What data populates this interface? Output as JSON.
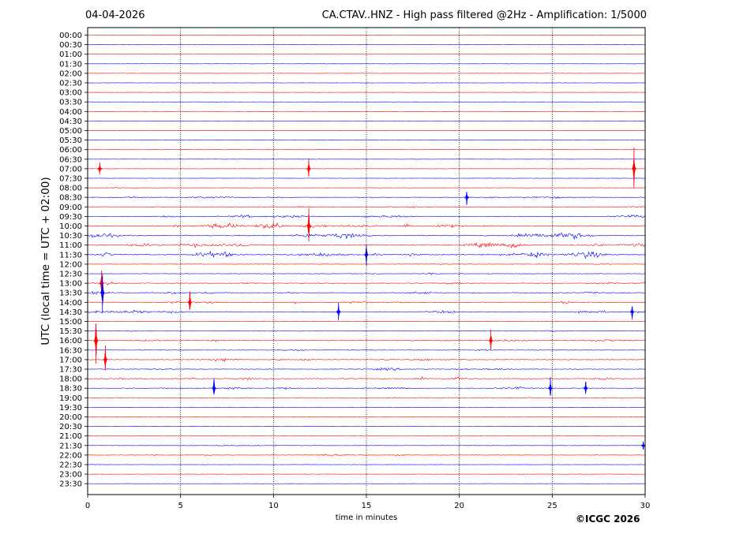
{
  "header": {
    "date": "04-04-2026",
    "title": "CA.CTAV..HNZ - High pass filtered @2Hz - Amplification: 1/5000"
  },
  "footer": {
    "copyright": "©ICGC 2026"
  },
  "chart_data": {
    "type": "line",
    "title": "CA.CTAV..HNZ - High pass filtered @2Hz - Amplification: 1/5000",
    "xlabel": "time in minutes",
    "ylabel": "UTC (local time = UTC + 02:00)",
    "xlim": [
      0,
      30
    ],
    "xticks": [
      0,
      5,
      10,
      15,
      20,
      25,
      30
    ],
    "vertical_gridlines_at": [
      5,
      10,
      15,
      20,
      25
    ],
    "row_labels": [
      "00:00",
      "00:30",
      "01:00",
      "01:30",
      "02:00",
      "02:30",
      "03:00",
      "03:30",
      "04:00",
      "04:30",
      "05:00",
      "05:30",
      "06:00",
      "06:30",
      "07:00",
      "07:30",
      "08:00",
      "08:30",
      "09:00",
      "09:30",
      "10:00",
      "10:30",
      "11:00",
      "11:30",
      "12:00",
      "12:30",
      "13:00",
      "13:30",
      "14:00",
      "14:30",
      "15:00",
      "15:30",
      "16:00",
      "16:30",
      "17:00",
      "17:30",
      "18:00",
      "18:30",
      "19:00",
      "19:30",
      "20:00",
      "20:30",
      "21:00",
      "21:30",
      "22:00",
      "22:30",
      "23:00",
      "23:30"
    ],
    "row_colors": [
      "#ff0000",
      "#0000ff"
    ],
    "row_activity": [
      0.03,
      0.03,
      0.03,
      0.02,
      0.05,
      0.03,
      0.04,
      0.03,
      0.04,
      0.03,
      0.05,
      0.04,
      0.06,
      0.08,
      0.1,
      0.08,
      0.1,
      0.35,
      0.3,
      0.45,
      0.7,
      0.8,
      0.75,
      0.85,
      0.2,
      0.25,
      0.4,
      0.5,
      0.45,
      0.5,
      0.15,
      0.25,
      0.4,
      0.25,
      0.45,
      0.35,
      0.55,
      0.45,
      0.15,
      0.05,
      0.05,
      0.05,
      0.06,
      0.15,
      0.3,
      0.1,
      0.06,
      0.04
    ],
    "spikes": [
      {
        "row": 14,
        "minute": 0.65,
        "amplitude": 0.9
      },
      {
        "row": 14,
        "minute": 11.9,
        "amplitude": 1.2
      },
      {
        "row": 14,
        "minute": 29.4,
        "amplitude": 2.4
      },
      {
        "row": 17,
        "minute": 20.4,
        "amplitude": 1.0
      },
      {
        "row": 20,
        "minute": 11.9,
        "amplitude": 2.2
      },
      {
        "row": 23,
        "minute": 15.0,
        "amplitude": 1.5
      },
      {
        "row": 26,
        "minute": 0.75,
        "amplitude": 1.8
      },
      {
        "row": 27,
        "minute": 0.8,
        "amplitude": 2.5
      },
      {
        "row": 28,
        "minute": 5.5,
        "amplitude": 1.6
      },
      {
        "row": 29,
        "minute": 13.5,
        "amplitude": 1.1
      },
      {
        "row": 29,
        "minute": 29.3,
        "amplitude": 1.0
      },
      {
        "row": 32,
        "minute": 0.45,
        "amplitude": 3.0
      },
      {
        "row": 32,
        "minute": 21.7,
        "amplitude": 1.3
      },
      {
        "row": 34,
        "minute": 0.95,
        "amplitude": 1.5
      },
      {
        "row": 37,
        "minute": 6.8,
        "amplitude": 1.4
      },
      {
        "row": 37,
        "minute": 24.9,
        "amplitude": 1.2
      },
      {
        "row": 37,
        "minute": 26.8,
        "amplitude": 1.0
      },
      {
        "row": 43,
        "minute": 29.9,
        "amplitude": 0.6
      }
    ]
  }
}
